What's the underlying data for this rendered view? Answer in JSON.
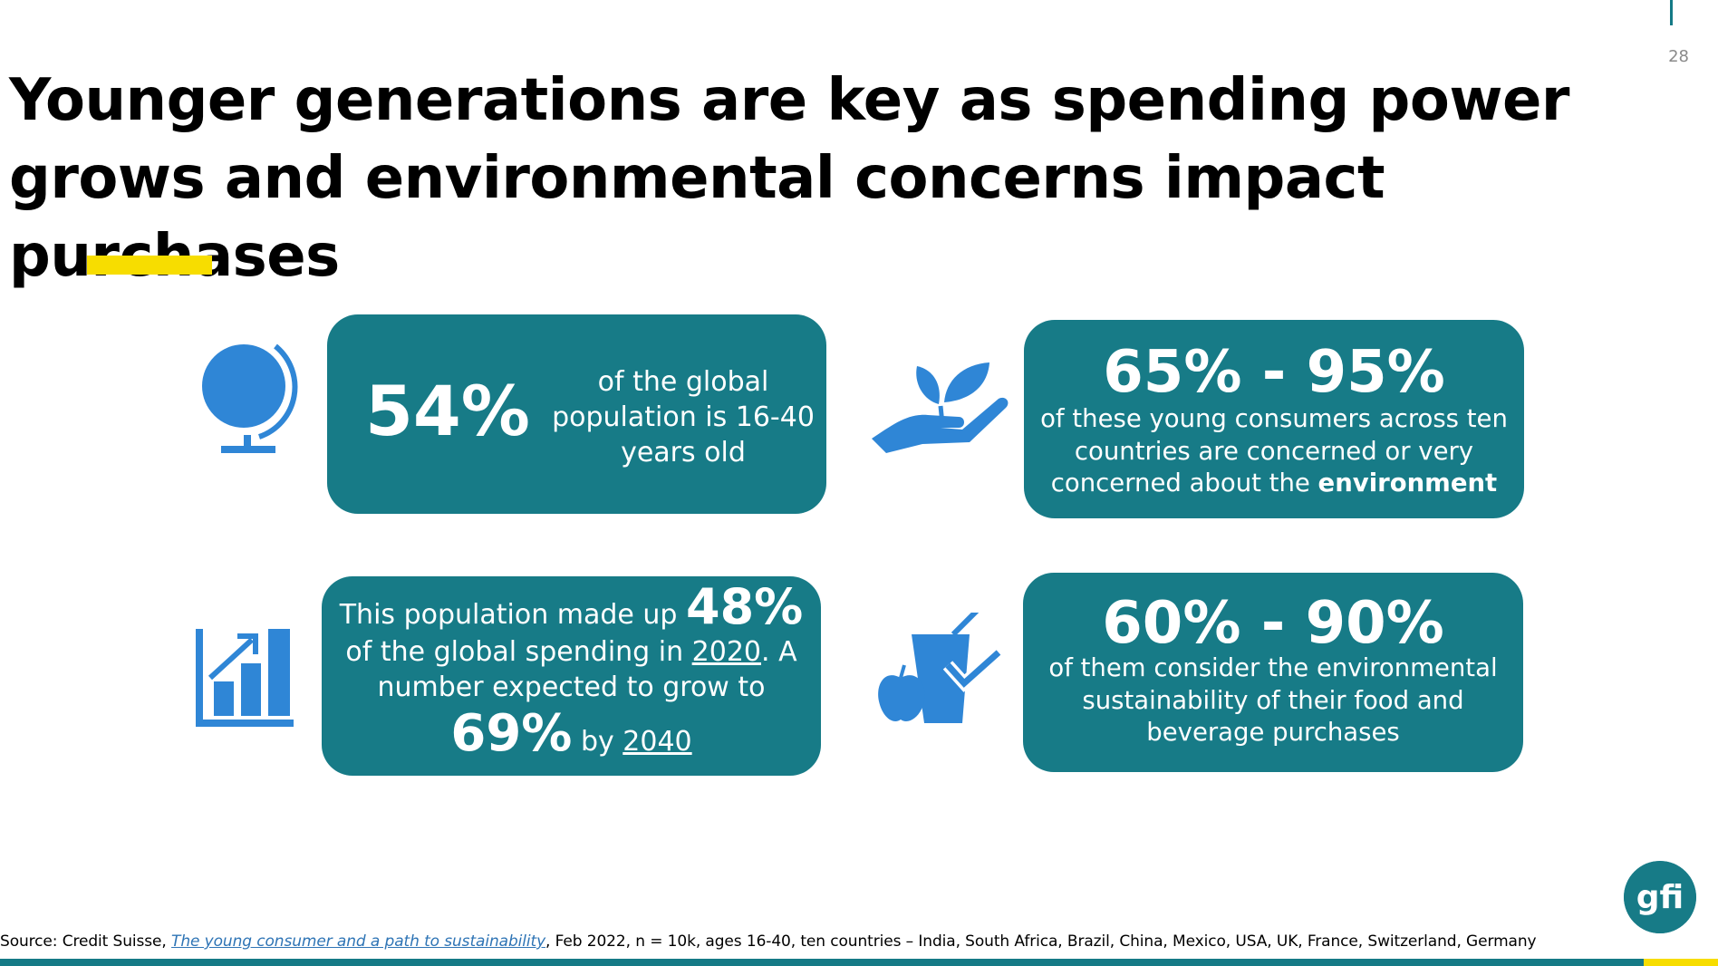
{
  "page_number": "28",
  "title": "Younger generations are key as spending power grows and environmental concerns impact purchases",
  "cards": {
    "population": {
      "value": "54%",
      "text": "of the global population is 16-40 years old"
    },
    "environment": {
      "range": "65% - 95%",
      "text_prefix": "of these young consumers across ten countries are concerned or very concerned about the ",
      "text_bold": "environment"
    },
    "spending": {
      "text_a": "This population made up ",
      "value_a": "48%",
      "text_b": "of the global spending in ",
      "year_a": "2020",
      "text_c": ". A",
      "text_d": "number expected to grow to",
      "value_b": "69%",
      "text_e": " by ",
      "year_b": "2040"
    },
    "sustainability": {
      "range": "60% - 90%",
      "text": "of them consider the environmental sustainability of their food and beverage purchases"
    }
  },
  "footer": {
    "prefix": "Source: Credit Suisse, ",
    "link_text": "The young consumer and a path to sustainability",
    "suffix": ", Feb 2022, n = 10k, ages 16-40, ten countries – India, South Africa, Brazil, China, Mexico, USA, UK, France, Switzerland, Germany"
  },
  "logo": {
    "text": "gfi"
  },
  "icons": {
    "population": "globe-icon",
    "environment": "plant-in-hand-icon",
    "spending": "growth-chart-icon",
    "sustainability": "food-beverage-check-icon"
  },
  "colors": {
    "card_bg": "#177b87",
    "icon_blue": "#2f86d6",
    "accent_yellow": "#f7dd00",
    "link_blue": "#2e74b5"
  }
}
